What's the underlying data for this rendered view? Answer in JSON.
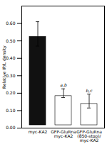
{
  "chart_data": {
    "type": "bar",
    "categories": [
      "myc-KA2",
      "GFP-GluRna\nmyc-KA2",
      "GFP-GluRna\n(850-stop)/\nmyc-KA2"
    ],
    "values": [
      0.54,
      0.2,
      0.155
    ],
    "errors": [
      0.07,
      0.025,
      0.04
    ],
    "colors": [
      "#111111",
      "#ffffff",
      "#ffffff"
    ],
    "annotations": [
      null,
      "a,b",
      "b,c"
    ],
    "ylabel": "Relative IP/L density",
    "ylim": [
      0.0,
      0.7
    ],
    "yticks": [
      0.0,
      0.1,
      0.2,
      0.3,
      0.4,
      0.5,
      0.6
    ]
  }
}
